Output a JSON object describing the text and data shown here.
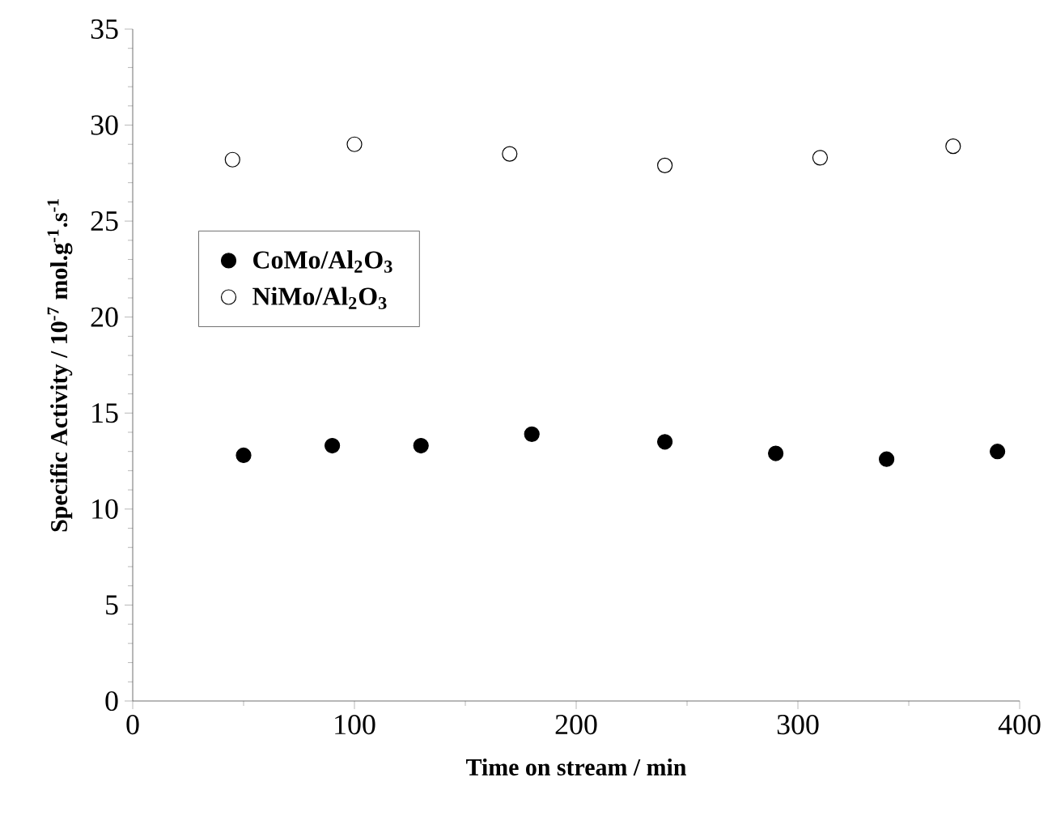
{
  "chart_data": {
    "type": "scatter",
    "xlabel": "Time on stream / min",
    "ylabel": "Specific Activity / 10$^{-7}$ mol.g$^{-1}$.s$^{-1}$",
    "xlim": [
      0,
      400
    ],
    "xticks": [
      0,
      100,
      200,
      300,
      400
    ],
    "ylim": [
      0,
      35
    ],
    "yticks": [
      0,
      5,
      10,
      15,
      20,
      25,
      30,
      35
    ],
    "marker": "circle",
    "legend": "left",
    "grid": false,
    "series": [
      {
        "name": "CoMo/Al$_{2}$O$_{3}$",
        "color": "#000000",
        "x": [
          50,
          90,
          130,
          180,
          240,
          290,
          340,
          390
        ],
        "values": [
          12.8,
          13.3,
          13.3,
          13.9,
          13.5,
          12.9,
          12.6,
          13.0
        ]
      },
      {
        "name": "NiMo/Al$_{2}$O$_{3}$",
        "color": "#ffffff",
        "x": [
          45,
          100,
          170,
          240,
          310,
          370
        ],
        "values": [
          28.2,
          29.0,
          28.5,
          27.9,
          28.3,
          28.9
        ]
      }
    ]
  }
}
